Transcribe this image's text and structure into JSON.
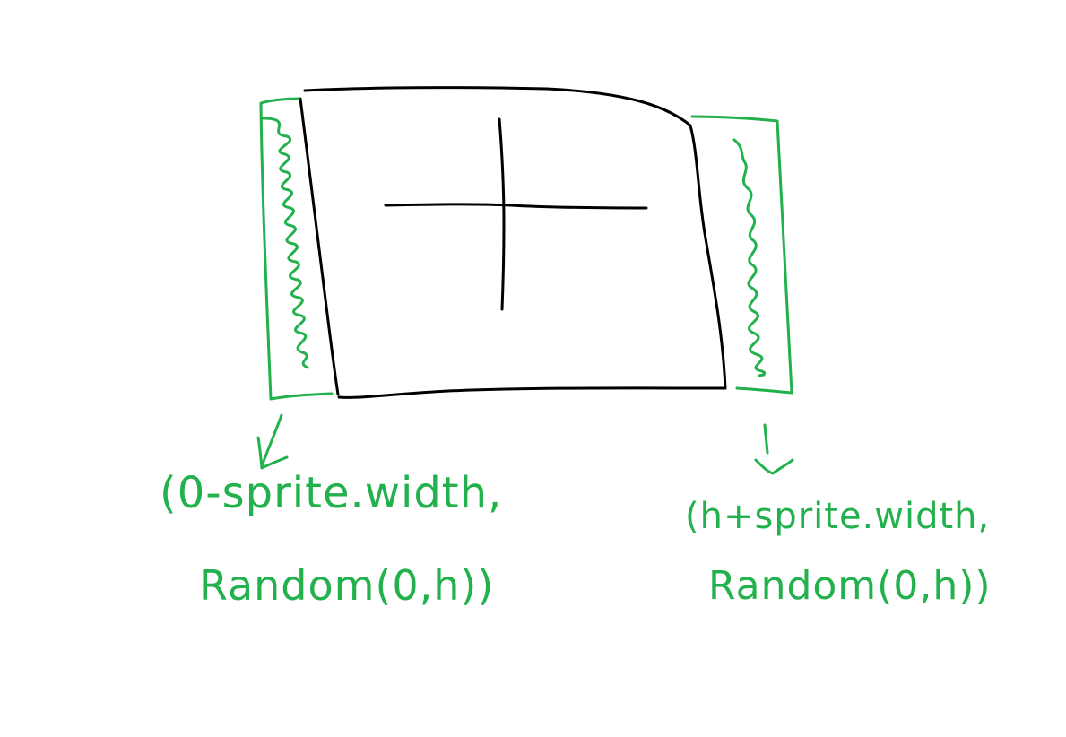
{
  "colors": {
    "black_ink": "#000000",
    "green_ink": "#22b14c",
    "background": "#ffffff"
  },
  "labels": {
    "left_line1": "(0-sprite.width,",
    "left_line2": "Random(0,h))",
    "right_line1": "(h+sprite.width,",
    "right_line2": "Random(0,h))"
  }
}
